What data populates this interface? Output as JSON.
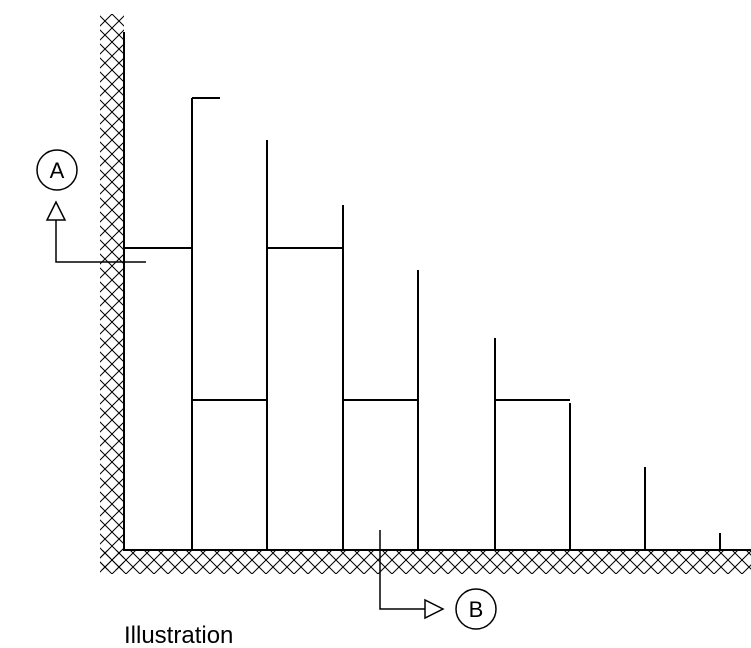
{
  "labels": {
    "a": "A",
    "b": "B",
    "caption": "Illustration"
  },
  "colors": {
    "ink": "#000000",
    "background": "#ffffff"
  }
}
